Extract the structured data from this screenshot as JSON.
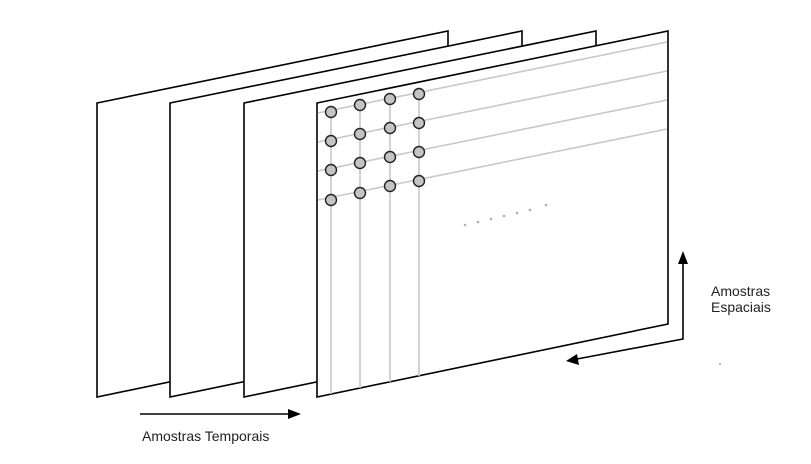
{
  "labels": {
    "temporal": "Amostras Temporais",
    "spatial_line1": "Amostras",
    "spatial_line2": "Espaciais"
  },
  "frames_count": 4,
  "sample_grid": {
    "rows": 4,
    "columns": 4
  },
  "colors": {
    "frame_stroke": "#000000",
    "grid_line": "#c8c8c8",
    "sample_fill": "#c4c4c4",
    "arrow": "#000000"
  }
}
